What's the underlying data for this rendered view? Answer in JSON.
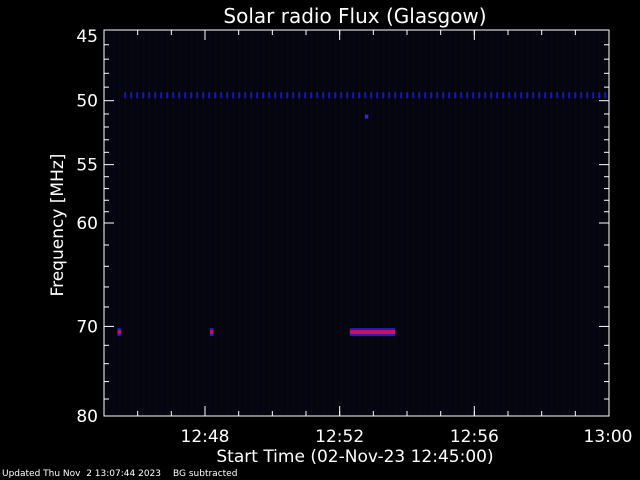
{
  "chart_data": {
    "type": "heatmap",
    "title": "Solar radio Flux (Glasgow)",
    "xlabel": "Start Time (02-Nov-23 12:45:00)",
    "ylabel": "Frequency [MHz]",
    "x_unit": "minutes after 12:45:00",
    "xlim": [
      0,
      15
    ],
    "ylim": [
      45,
      80
    ],
    "y_axis_inverted": true,
    "y_scale": "log",
    "x_ticks": [
      {
        "value": 3,
        "label": "12:48"
      },
      {
        "value": 7,
        "label": "12:52"
      },
      {
        "value": 11,
        "label": "12:56"
      },
      {
        "value": 15,
        "label": "13:00"
      }
    ],
    "y_ticks": [
      {
        "value": 45,
        "label": "45"
      },
      {
        "value": 50,
        "label": "50"
      },
      {
        "value": 55,
        "label": "55"
      },
      {
        "value": 60,
        "label": "60"
      },
      {
        "value": 70,
        "label": "70"
      },
      {
        "value": 80,
        "label": "80"
      }
    ],
    "background_color": "#050510",
    "features": [
      {
        "kind": "band",
        "x_start": 0.6,
        "x_end": 15.0,
        "y": 49.6,
        "intensity": "low",
        "color": "#1a1aa8"
      },
      {
        "kind": "dot",
        "x_start": 7.75,
        "x_end": 7.85,
        "y": 51.2,
        "intensity": "low",
        "color": "#2a2ad8"
      },
      {
        "kind": "burst",
        "x_start": 0.4,
        "x_end": 0.5,
        "y": 70.6,
        "intensity": "high",
        "color": "#c0106a"
      },
      {
        "kind": "burst",
        "x_start": 3.15,
        "x_end": 3.25,
        "y": 70.6,
        "intensity": "high",
        "color": "#c0106a"
      },
      {
        "kind": "burst",
        "x_start": 7.3,
        "x_end": 8.65,
        "y": 70.6,
        "intensity": "high",
        "color": "#d0105a"
      }
    ]
  },
  "footer": {
    "updated": "Updated Thu Nov  2 13:07:44 2023",
    "note": "BG subtracted"
  }
}
